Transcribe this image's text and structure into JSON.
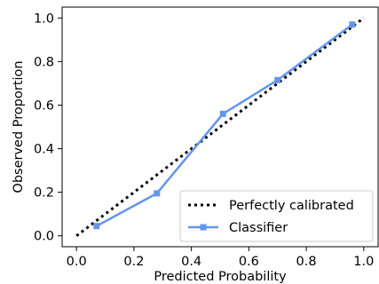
{
  "chart_data": {
    "type": "line",
    "xlabel": "Predicted Probability",
    "ylabel": "Observed Proportion",
    "xlim": [
      -0.05,
      1.05
    ],
    "ylim": [
      -0.05,
      1.05
    ],
    "x_ticks": [
      0.0,
      0.2,
      0.4,
      0.6,
      0.8,
      1.0
    ],
    "x_tick_labels": [
      "0.0",
      "0.2",
      "0.4",
      "0.6",
      "0.8",
      "1.0"
    ],
    "y_ticks": [
      0.0,
      0.2,
      0.4,
      0.6,
      0.8,
      1.0
    ],
    "y_tick_labels": [
      "0.0",
      "0.2",
      "0.4",
      "0.6",
      "0.8",
      "1.0"
    ],
    "grid": false,
    "legend_position": "lower-right",
    "series": [
      {
        "name": "Perfectly calibrated",
        "style": "dotted",
        "color": "#000000",
        "x": [
          0.0,
          1.0
        ],
        "y": [
          0.0,
          1.0
        ]
      },
      {
        "name": "Classifier",
        "style": "solid",
        "marker": "square",
        "color": "#6495ED",
        "x": [
          0.07,
          0.28,
          0.51,
          0.7,
          0.96
        ],
        "y": [
          0.045,
          0.195,
          0.56,
          0.715,
          0.97
        ]
      }
    ]
  }
}
